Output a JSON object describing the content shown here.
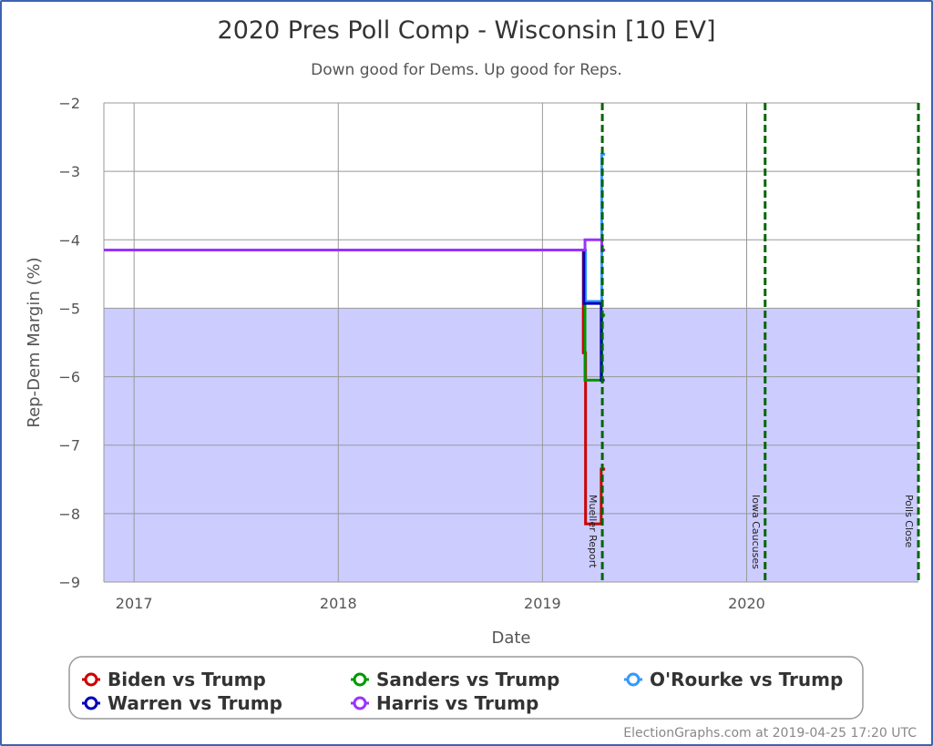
{
  "chart_data": {
    "type": "line",
    "title": "2020 Pres Poll Comp - Wisconsin [10 EV]",
    "subtitle": "Down good for Dems. Up good for Reps.",
    "xlabel": "Date",
    "ylabel": "Rep-Dem Margin (%)",
    "xlim": [
      "2016-11-08",
      "2020-11-03"
    ],
    "ylim": [
      -9,
      -2
    ],
    "x_ticks": [
      {
        "date": "2017-01-01",
        "label": "2017"
      },
      {
        "date": "2018-01-01",
        "label": "2018"
      },
      {
        "date": "2019-01-01",
        "label": "2019"
      },
      {
        "date": "2020-01-01",
        "label": "2020"
      }
    ],
    "y_ticks": [
      -2,
      -3,
      -4,
      -5,
      -6,
      -7,
      -8,
      -9
    ],
    "y_tick_labels": [
      "−2",
      "−3",
      "−4",
      "−5",
      "−6",
      "−7",
      "−8",
      "−9"
    ],
    "grid": true,
    "shaded_region": {
      "from": -9,
      "to": -5,
      "color": "#ccccff"
    },
    "events": [
      {
        "date": "2019-04-18",
        "label": "Mueller Report"
      },
      {
        "date": "2020-02-03",
        "label": "Iowa Caucuses"
      },
      {
        "date": "2020-11-03",
        "label": "Polls Close"
      }
    ],
    "event_color": "#006600",
    "legend_position": "bottom",
    "series": [
      {
        "name": "Biden vs Trump",
        "color": "#cc0000",
        "step": true,
        "points": [
          [
            "2016-11-08",
            -4.15
          ],
          [
            "2019-03-15",
            -5.65
          ],
          [
            "2019-03-19",
            -8.15
          ],
          [
            "2019-04-16",
            -7.35
          ],
          [
            "2019-04-23",
            -7.35
          ]
        ]
      },
      {
        "name": "Sanders vs Trump",
        "color": "#009900",
        "step": true,
        "points": [
          [
            "2016-11-08",
            -4.15
          ],
          [
            "2019-03-18",
            -6.05
          ],
          [
            "2019-04-17",
            -5.1
          ],
          [
            "2019-04-23",
            -5.1
          ]
        ]
      },
      {
        "name": "O'Rourke vs Trump",
        "color": "#3399ff",
        "step": true,
        "points": [
          [
            "2016-11-08",
            -4.15
          ],
          [
            "2019-03-19",
            -4.9
          ],
          [
            "2019-04-17",
            -2.75
          ],
          [
            "2019-04-23",
            -2.75
          ]
        ]
      },
      {
        "name": "Warren vs Trump",
        "color": "#0000bb",
        "step": true,
        "points": [
          [
            "2016-11-08",
            -4.15
          ],
          [
            "2019-03-16",
            -4.93
          ],
          [
            "2019-04-16",
            -6.05
          ],
          [
            "2019-04-22",
            -6.05
          ]
        ]
      },
      {
        "name": "Harris vs Trump",
        "color": "#9933ff",
        "step": true,
        "points": [
          [
            "2016-11-08",
            -4.15
          ],
          [
            "2019-03-18",
            -4.0
          ],
          [
            "2019-04-17",
            -4.15
          ],
          [
            "2019-04-23",
            -4.15
          ]
        ]
      }
    ]
  },
  "legend_order": [
    0,
    3,
    1,
    4,
    2
  ],
  "credit": "ElectionGraphs.com at 2019-04-25 17:20 UTC"
}
